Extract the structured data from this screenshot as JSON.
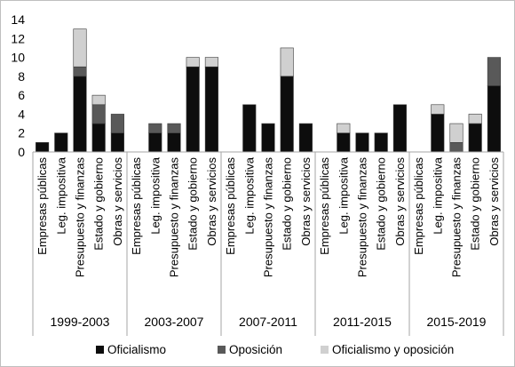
{
  "chart_data": {
    "type": "bar",
    "stacked": true,
    "title": "",
    "xlabel": "",
    "ylabel": "",
    "ylim": [
      0,
      14
    ],
    "yticks": [
      0,
      2,
      4,
      6,
      8,
      10,
      12,
      14
    ],
    "grid": false,
    "legend_position": "bottom",
    "categories": [
      "Empresas públicas",
      "Leg. impositiva",
      "Presupuesto y finanzas",
      "Estado y gobierno",
      "Obras y servicios"
    ],
    "periods": [
      "1999-2003",
      "2003-2007",
      "2007-2011",
      "2011-2015",
      "2015-2019"
    ],
    "series": [
      {
        "name": "Oficialismo",
        "color": "#0d0d0d",
        "values": [
          [
            1,
            2,
            8,
            3,
            2
          ],
          [
            0,
            2,
            2,
            9,
            9
          ],
          [
            0,
            5,
            3,
            8,
            3
          ],
          [
            0,
            2,
            2,
            2,
            5
          ],
          [
            0,
            4,
            0,
            3,
            7
          ]
        ]
      },
      {
        "name": "Oposición",
        "color": "#595959",
        "values": [
          [
            0,
            0,
            1,
            2,
            2
          ],
          [
            0,
            1,
            1,
            0,
            0
          ],
          [
            0,
            0,
            0,
            0,
            0
          ],
          [
            0,
            0,
            0,
            0,
            0
          ],
          [
            0,
            0,
            1,
            0,
            3
          ]
        ]
      },
      {
        "name": "Oficialismo y oposición",
        "color": "#d0d0d0",
        "values": [
          [
            0,
            0,
            4,
            1,
            0
          ],
          [
            0,
            0,
            0,
            1,
            1
          ],
          [
            0,
            0,
            0,
            3,
            0
          ],
          [
            0,
            1,
            0,
            0,
            0
          ],
          [
            0,
            1,
            2,
            1,
            0
          ]
        ]
      }
    ]
  }
}
